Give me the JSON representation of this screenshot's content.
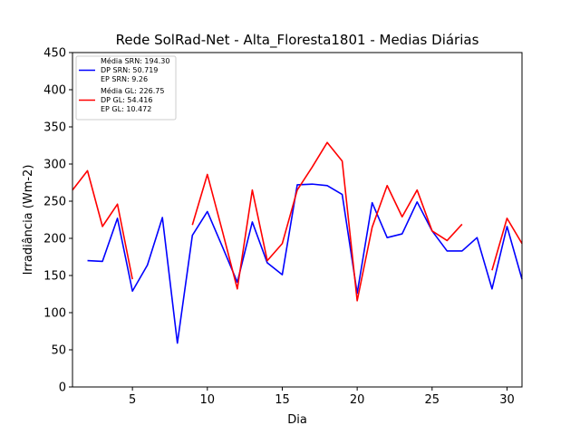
{
  "chart_data": {
    "type": "line",
    "title": "Rede SolRad-Net - Alta_Floresta1801 - Medias Diárias",
    "xlabel": "Dia",
    "ylabel": "Irradiância (Wm-2)",
    "xlim": [
      1,
      31
    ],
    "ylim": [
      0,
      450
    ],
    "xticks": [
      5,
      10,
      15,
      20,
      25,
      30
    ],
    "yticks": [
      0,
      50,
      100,
      150,
      200,
      250,
      300,
      350,
      400,
      450
    ],
    "grid": false,
    "legend_position": "top-left",
    "series": [
      {
        "id": "srn",
        "color": "#0000ff",
        "legend": [
          "Média SRN: 194.30",
          "DP SRN: 50.719",
          "EP SRN: 9.26"
        ],
        "x": [
          2,
          3,
          4,
          5,
          6,
          7,
          8,
          9,
          10,
          11,
          12,
          13,
          14,
          15,
          16,
          17,
          18,
          19,
          20,
          21,
          22,
          23,
          24,
          25,
          26,
          27,
          28,
          29,
          30,
          31
        ],
        "y": [
          170,
          169,
          227,
          129,
          164,
          228,
          59,
          204,
          236,
          189,
          141,
          222,
          167,
          151,
          272,
          273,
          271,
          259,
          126,
          248,
          201,
          206,
          249,
          210,
          183,
          183,
          201,
          132,
          216,
          145
        ]
      },
      {
        "id": "gl",
        "color": "#ff0000",
        "legend": [
          "Média GL: 226.75",
          "DP GL: 54.416",
          "EP GL: 10.472"
        ],
        "x": [
          1,
          2,
          3,
          4,
          5,
          null,
          9,
          10,
          11,
          12,
          13,
          14,
          15,
          16,
          17,
          18,
          19,
          20,
          21,
          22,
          23,
          24,
          25,
          26,
          27,
          null,
          29,
          30,
          31
        ],
        "y": [
          265,
          291,
          216,
          246,
          145,
          null,
          218,
          286,
          210,
          132,
          265,
          170,
          193,
          265,
          296,
          329,
          304,
          116,
          215,
          271,
          229,
          265,
          210,
          197,
          219,
          null,
          157,
          227,
          193
        ]
      }
    ]
  }
}
